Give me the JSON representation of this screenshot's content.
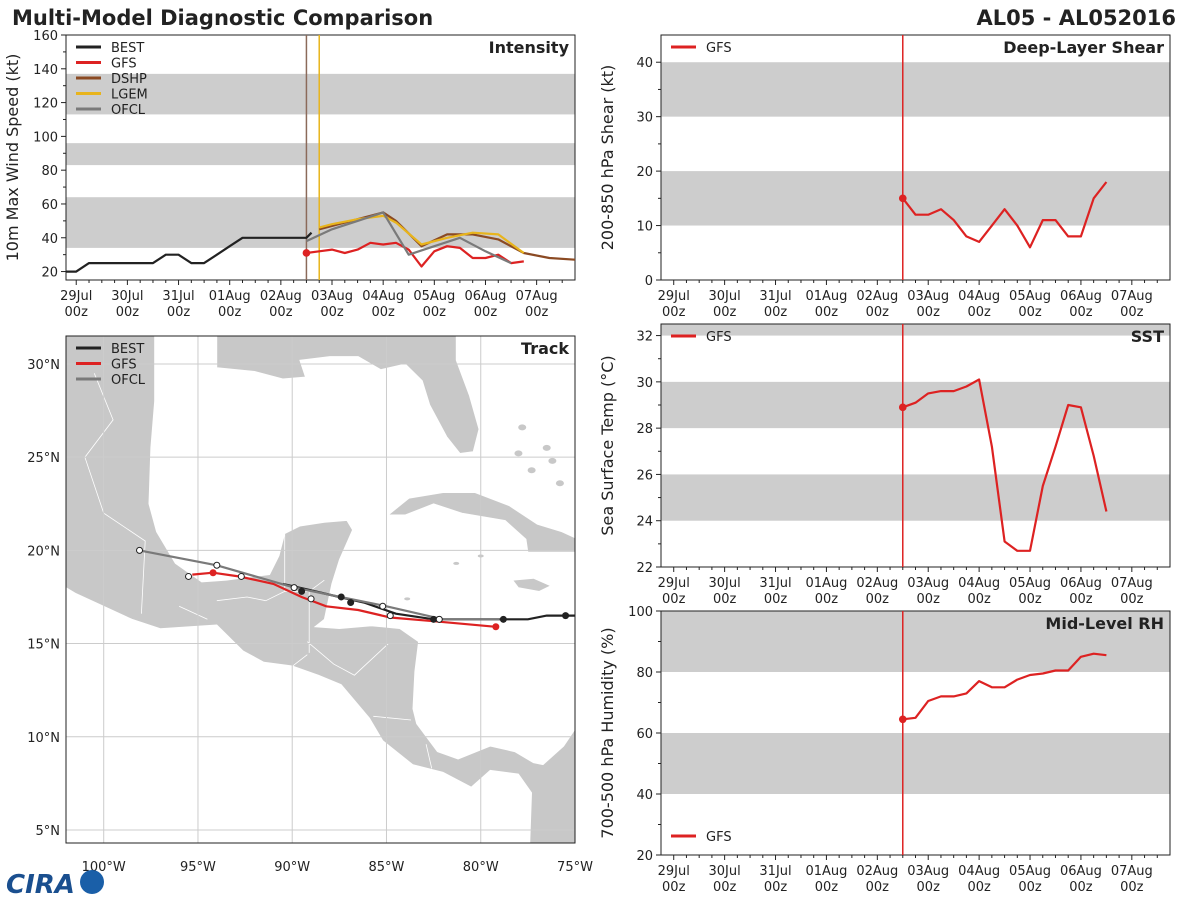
{
  "header": {
    "title": "Multi-Model Diagnostic Comparison",
    "storm_id": "AL05 - AL052016"
  },
  "colors": {
    "BEST": "#222222",
    "GFS": "#dd2222",
    "DSHP": "#8b4a23",
    "LGEM": "#e8b41c",
    "OFCL": "#7a7a7a",
    "band": "#cdcdcd",
    "land": "#c8c8c8",
    "grid": "#cccccc"
  },
  "time_ticks": [
    "29Jul\n00z",
    "30Jul\n00z",
    "31Jul\n00z",
    "01Aug\n00z",
    "02Aug\n00z",
    "03Aug\n00z",
    "04Aug\n00z",
    "05Aug\n00z",
    "06Aug\n00z",
    "07Aug\n00z"
  ],
  "chart_data": [
    {
      "id": "intensity",
      "type": "line",
      "title": "Intensity",
      "ylabel": "10m Max Wind Speed (kt)",
      "xlabel": "",
      "xunit": "days since 29Jul 00z",
      "xlim": [
        -0.2,
        9.75
      ],
      "ylim": [
        15,
        160
      ],
      "yticks": [
        20,
        40,
        60,
        80,
        100,
        120,
        140,
        160
      ],
      "bands": [
        [
          34,
          64
        ],
        [
          83,
          96
        ],
        [
          113,
          137
        ]
      ],
      "vlines": [
        {
          "x": 4.5,
          "color": "#8b6a5a"
        },
        {
          "x": 4.75,
          "color": "#e8b41c"
        }
      ],
      "legend": [
        "BEST",
        "GFS",
        "DSHP",
        "LGEM",
        "OFCL"
      ],
      "series": [
        {
          "name": "BEST",
          "x": [
            -0.2,
            0,
            0.25,
            0.5,
            0.75,
            1,
            1.25,
            1.5,
            1.75,
            2,
            2.25,
            2.5,
            2.75,
            3,
            3.25,
            3.5,
            3.75,
            4,
            4.25,
            4.5,
            4.6
          ],
          "y": [
            20,
            20,
            25,
            25,
            25,
            25,
            25,
            25,
            30,
            30,
            25,
            25,
            30,
            35,
            40,
            40,
            40,
            40,
            40,
            40,
            43
          ]
        },
        {
          "name": "GFS",
          "x": [
            4.5,
            4.75,
            5,
            5.25,
            5.5,
            5.75,
            6,
            6.25,
            6.5,
            6.75,
            7,
            7.25,
            7.5,
            7.75,
            8,
            8.25,
            8.5,
            8.75
          ],
          "y": [
            31,
            32,
            33,
            31,
            33,
            37,
            36,
            37,
            33,
            23,
            32,
            35,
            34,
            28,
            28,
            30,
            25,
            26
          ]
        },
        {
          "name": "DSHP",
          "x": [
            4.75,
            5,
            5.5,
            6,
            6.25,
            6.75,
            7.25,
            7.75,
            8.25,
            8.75,
            9.25,
            9.75
          ],
          "y": [
            45,
            47,
            51,
            55,
            50,
            35,
            42,
            42,
            39,
            31,
            28,
            27
          ]
        },
        {
          "name": "LGEM",
          "x": [
            4.75,
            5,
            5.5,
            6,
            6.25,
            6.75,
            7.25,
            7.75,
            8.25,
            8.75
          ],
          "y": [
            46,
            48,
            51,
            53,
            49,
            36,
            40,
            43,
            42,
            31
          ]
        },
        {
          "name": "OFCL",
          "x": [
            4.5,
            5,
            5.5,
            6,
            6.5,
            7,
            7.5,
            8,
            8.5
          ],
          "y": [
            38,
            45,
            50,
            55,
            30,
            35,
            40,
            32,
            25
          ]
        }
      ]
    },
    {
      "id": "shear",
      "type": "line",
      "title": "Deep-Layer Shear",
      "ylabel": "200-850 hPa Shear (kt)",
      "xlabel": "",
      "xunit": "days since 29Jul 00z",
      "xlim": [
        -0.25,
        9.75
      ],
      "ylim": [
        0,
        45
      ],
      "yticks": [
        0,
        10,
        20,
        30,
        40
      ],
      "bands": [
        [
          10,
          20
        ],
        [
          30,
          40
        ]
      ],
      "vlines": [
        {
          "x": 4.5,
          "color": "#dd2222"
        }
      ],
      "legend": [
        "GFS"
      ],
      "series": [
        {
          "name": "GFS",
          "x": [
            4.5,
            4.75,
            5,
            5.25,
            5.5,
            5.75,
            6,
            6.25,
            6.5,
            6.75,
            7,
            7.25,
            7.5,
            7.75,
            8,
            8.25,
            8.5
          ],
          "y": [
            15,
            12,
            12,
            13,
            11,
            8,
            7,
            10,
            13,
            10,
            6,
            11,
            11,
            8,
            8,
            15,
            18
          ]
        }
      ]
    },
    {
      "id": "sst",
      "type": "line",
      "title": "SST",
      "ylabel": "Sea Surface Temp (°C)",
      "xlabel": "",
      "xunit": "days since 29Jul 00z",
      "xlim": [
        -0.25,
        9.75
      ],
      "ylim": [
        22,
        32.5
      ],
      "yticks": [
        22,
        24,
        26,
        28,
        30,
        32
      ],
      "bands": [
        [
          24,
          26
        ],
        [
          28,
          30
        ],
        [
          32,
          32.5
        ]
      ],
      "vlines": [
        {
          "x": 4.5,
          "color": "#dd2222"
        }
      ],
      "legend": [
        "GFS"
      ],
      "series": [
        {
          "name": "GFS",
          "x": [
            4.5,
            4.75,
            5,
            5.25,
            5.5,
            5.75,
            6,
            6.25,
            6.5,
            6.75,
            7,
            7.25,
            7.5,
            7.75,
            8,
            8.25,
            8.5
          ],
          "y": [
            28.9,
            29.1,
            29.5,
            29.6,
            29.6,
            29.8,
            30.1,
            27.2,
            23.1,
            22.7,
            22.7,
            25.5,
            27.2,
            29.0,
            28.9,
            26.8,
            24.4
          ]
        }
      ]
    },
    {
      "id": "rh",
      "type": "line",
      "title": "Mid-Level RH",
      "ylabel": "700-500 hPa Humidity (%)",
      "xlabel": "",
      "xunit": "days since 29Jul 00z",
      "xlim": [
        -0.25,
        9.75
      ],
      "ylim": [
        20,
        100
      ],
      "yticks": [
        20,
        40,
        60,
        80,
        100
      ],
      "bands": [
        [
          40,
          60
        ],
        [
          80,
          100
        ]
      ],
      "vlines": [
        {
          "x": 4.5,
          "color": "#dd2222"
        }
      ],
      "legend": [
        "GFS"
      ],
      "series": [
        {
          "name": "GFS",
          "x": [
            4.5,
            4.75,
            5,
            5.25,
            5.5,
            5.75,
            6,
            6.25,
            6.5,
            6.75,
            7,
            7.25,
            7.5,
            7.75,
            8,
            8.25,
            8.5
          ],
          "y": [
            64.5,
            65,
            70.5,
            72,
            72,
            73,
            77,
            75,
            75,
            77.5,
            79,
            79.5,
            80.5,
            80.5,
            85,
            86,
            85.5
          ]
        }
      ]
    },
    {
      "id": "track",
      "type": "scatter",
      "title": "Track",
      "xlabel": "longitude",
      "ylabel": "latitude",
      "xlim": [
        -102,
        -75
      ],
      "ylim": [
        4.3,
        31.5
      ],
      "xticks": [
        -100,
        -95,
        -90,
        -85,
        -80,
        -75
      ],
      "xticklabels": [
        "100°W",
        "95°W",
        "90°W",
        "85°W",
        "80°W",
        "75°W"
      ],
      "yticks": [
        5,
        10,
        15,
        20,
        25,
        30
      ],
      "yticklabels": [
        "5°N",
        "10°N",
        "15°N",
        "20°N",
        "25°N",
        "30°N"
      ],
      "legend": [
        "BEST",
        "GFS",
        "OFCL"
      ],
      "series": [
        {
          "name": "BEST",
          "lon": [
            -75,
            -76.5,
            -77.5,
            -78.8,
            -80.5,
            -82.5,
            -84.5,
            -86.2,
            -87.5,
            -89.2,
            -90.5
          ],
          "lat": [
            16.5,
            16.5,
            16.3,
            16.3,
            16.3,
            16.3,
            16.6,
            17.2,
            17.5,
            17.9,
            18.2
          ],
          "markers": [
            {
              "lon": -75.5,
              "lat": 16.5
            },
            {
              "lon": -78.8,
              "lat": 16.3
            },
            {
              "lon": -82.5,
              "lat": 16.3
            },
            {
              "lon": -82.2,
              "lat": 16.3
            },
            {
              "lon": -86.9,
              "lat": 17.2
            },
            {
              "lon": -87.4,
              "lat": 17.5
            },
            {
              "lon": -89.5,
              "lat": 17.8
            }
          ]
        },
        {
          "name": "GFS",
          "lon": [
            -79.2,
            -82.5,
            -84.8,
            -86.5,
            -88.2,
            -89.5,
            -91,
            -92.8,
            -94.2,
            -95.3
          ],
          "lat": [
            15.9,
            16.2,
            16.4,
            16.8,
            17.0,
            17.5,
            18.2,
            18.6,
            18.8,
            18.7
          ],
          "markers": [
            {
              "lon": -79.2,
              "lat": 15.9
            },
            {
              "lon": -94.2,
              "lat": 18.8
            }
          ]
        },
        {
          "name": "OFCL",
          "lon": [
            -79,
            -82,
            -85,
            -89.9,
            -94,
            -98.1
          ],
          "lat": [
            16.3,
            16.3,
            17.0,
            18.0,
            19.2,
            20.0
          ],
          "open_markers": [
            {
              "lon": -82.2,
              "lat": 16.3
            },
            {
              "lon": -84.8,
              "lat": 16.5
            },
            {
              "lon": -85.2,
              "lat": 17.0
            },
            {
              "lon": -89,
              "lat": 17.4
            },
            {
              "lon": -89.9,
              "lat": 18.0
            },
            {
              "lon": -92.7,
              "lat": 18.6
            },
            {
              "lon": -94,
              "lat": 19.2
            },
            {
              "lon": -95.5,
              "lat": 18.6
            },
            {
              "lon": -98.1,
              "lat": 20.0
            }
          ]
        }
      ]
    }
  ],
  "logo": {
    "text": "CIRA"
  }
}
